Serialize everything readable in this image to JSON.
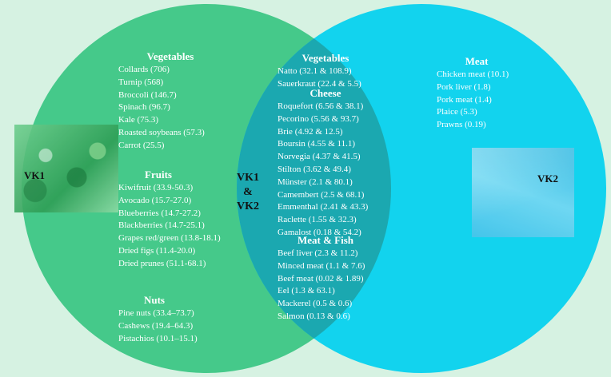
{
  "circles": {
    "vk1_label": "VK1",
    "vk2_label": "VK2",
    "overlap_label_line1": "VK1",
    "overlap_label_line2": "&",
    "overlap_label_line3": "VK2",
    "colors": {
      "vk1": "#45c98a",
      "vk2": "#12d3ee",
      "overlap": "#1ba8b0",
      "background": "#d6f2e2"
    }
  },
  "vk1": {
    "vegetables": {
      "heading": "Vegetables",
      "items": [
        "Collards (706)",
        "Turnip (568)",
        "Broccoli (146.7)",
        "Spinach (96.7)",
        "Kale (75.3)",
        "Roasted soybeans (57.3)",
        "Carrot (25.5)"
      ]
    },
    "fruits": {
      "heading": "Fruits",
      "items": [
        "Kiwifruit (33.9-50.3)",
        "Avocado (15.7-27.0)",
        "Blueberries (14.7-27.2)",
        "Blackberries (14.7-25.1)",
        "Grapes red/green (13.8-18.1)",
        "Dried figs (11.4-20.0)",
        "Dried prunes (51.1-68.1)"
      ]
    },
    "nuts": {
      "heading": "Nuts",
      "items": [
        "Pine nuts (33.4–73.7)",
        "Cashews (19.4–64.3)",
        "Pistachios (10.1–15.1)"
      ]
    }
  },
  "both": {
    "vegetables": {
      "heading": "Vegetables",
      "items": [
        "Natto (32.1 & 108.9)",
        "Sauerkraut (22.4 & 5.5)"
      ]
    },
    "cheese": {
      "heading": "Cheese",
      "items": [
        "Roquefort (6.56 & 38.1)",
        "Pecorino (5.56 & 93.7)",
        "Brie (4.92 & 12.5)",
        "Boursin (4.55 & 11.1)",
        "Norvegia (4.37 & 41.5)",
        "Stilton (3.62 & 49.4)",
        "Münster (2.1 & 80.1)",
        "Camembert (2.5 & 68.1)",
        "Emmenthal (2.41 & 43.3)",
        "Raclette (1.55 & 32.3)",
        "Gamalost (0.18 & 54.2)"
      ]
    },
    "meat_fish": {
      "heading": "Meat & Fish",
      "items": [
        "Beef liver (2.3 & 11.2)",
        "Minced meat (1.1 & 7.6)",
        "Beef meat (0.02 & 1.89)",
        "Eel (1.3 & 63.1)",
        "Mackerel (0.5 & 0.6)",
        "Salmon (0.13 & 0.6)"
      ]
    }
  },
  "vk2": {
    "meat": {
      "heading": "Meat",
      "items": [
        "Chicken meat (10.1)",
        "Pork liver (1.8)",
        "Pork meat (1.4)",
        "Plaice (5.3)",
        "Prawns (0.19)"
      ]
    }
  }
}
